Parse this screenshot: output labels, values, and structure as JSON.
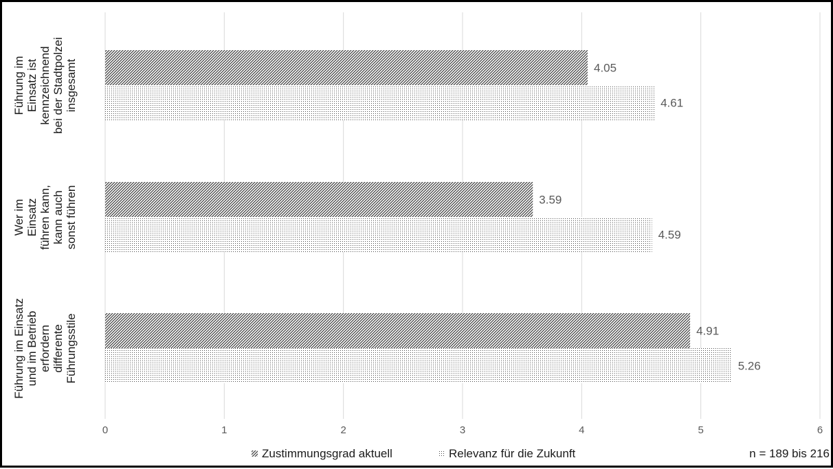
{
  "chart_data": {
    "type": "bar",
    "orientation": "horizontal",
    "categories": [
      [
        "Führung im",
        "Einsatz ist",
        "kennzeichnend",
        "bei der Stadtpolzei",
        "insgesamt"
      ],
      [
        "Wer im",
        "Einsatz",
        "führen kann,",
        "kann auch",
        "sonst führen"
      ],
      [
        "Führung im Einsatz",
        "und im Betrieb",
        "erfordern",
        "differente",
        "Führungsstile"
      ]
    ],
    "series": [
      {
        "name": "Zustimmungsgrad aktuell",
        "values": [
          4.05,
          3.59,
          4.91
        ],
        "labels": [
          "4.05",
          "3.59",
          "4.91"
        ],
        "pattern": "diagonal-hatch"
      },
      {
        "name": "Relevanz für die Zukunft",
        "values": [
          4.61,
          4.59,
          5.26
        ],
        "labels": [
          "4.61",
          "4.59",
          "5.26"
        ],
        "pattern": "dots"
      }
    ],
    "xlim": [
      0,
      6
    ],
    "xticks": [
      "0",
      "1",
      "2",
      "3",
      "4",
      "5",
      "6"
    ],
    "grid": true,
    "legend_position": "bottom",
    "note": "n = 189 bis 216",
    "colors": {
      "pattern": "#3c3c3c",
      "grid": "#d9d9d9",
      "text": "#595959",
      "category_text": "#1a1a1a"
    }
  }
}
